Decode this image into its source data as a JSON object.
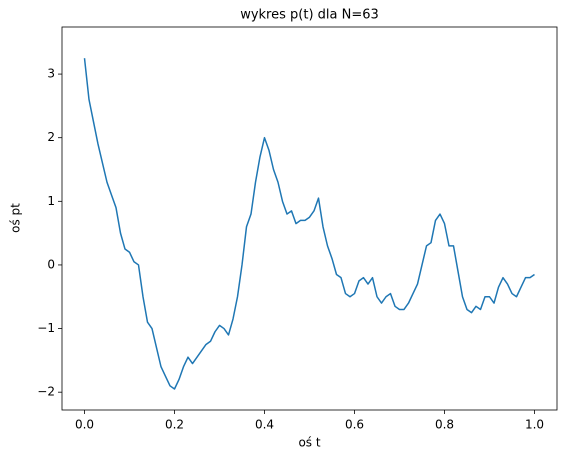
{
  "chart_data": {
    "type": "line",
    "title": "wykres p(t) dla N=63",
    "xlabel": "oś t",
    "ylabel": "oś pt",
    "color": "#1f77b4",
    "x": [
      0,
      0.01,
      0.02,
      0.03,
      0.04,
      0.05,
      0.06,
      0.07,
      0.08,
      0.09,
      0.1,
      0.11,
      0.12,
      0.13,
      0.14,
      0.15,
      0.16,
      0.17,
      0.18,
      0.19,
      0.2,
      0.21,
      0.22,
      0.23,
      0.24,
      0.25,
      0.26,
      0.27,
      0.28,
      0.29,
      0.3,
      0.31,
      0.32,
      0.33,
      0.34,
      0.35,
      0.36,
      0.37,
      0.38,
      0.39,
      0.4,
      0.41,
      0.42,
      0.43,
      0.44,
      0.45,
      0.46,
      0.47,
      0.48,
      0.49,
      0.5,
      0.51,
      0.52,
      0.53,
      0.54,
      0.55,
      0.56,
      0.57,
      0.58,
      0.59,
      0.6,
      0.61,
      0.62,
      0.63,
      0.64,
      0.65,
      0.66,
      0.67,
      0.68,
      0.69,
      0.7,
      0.71,
      0.72,
      0.73,
      0.74,
      0.75,
      0.76,
      0.77,
      0.78,
      0.79,
      0.8,
      0.81,
      0.82,
      0.83,
      0.84,
      0.85,
      0.86,
      0.87,
      0.88,
      0.89,
      0.9,
      0.91,
      0.92,
      0.93,
      0.94,
      0.95,
      0.96,
      0.97,
      0.98,
      0.99,
      1
    ],
    "values": [
      3.25,
      2.6,
      2.25,
      1.9,
      1.6,
      1.3,
      1.1,
      0.9,
      0.5,
      0.25,
      0.2,
      0.05,
      0,
      -0.5,
      -0.9,
      -1,
      -1.3,
      -1.6,
      -1.75,
      -1.9,
      -1.95,
      -1.8,
      -1.6,
      -1.45,
      -1.55,
      -1.45,
      -1.35,
      -1.25,
      -1.2,
      -1.05,
      -0.95,
      -1,
      -1.1,
      -0.85,
      -0.5,
      0,
      0.6,
      0.8,
      1.3,
      1.7,
      2,
      1.8,
      1.5,
      1.3,
      1,
      0.8,
      0.85,
      0.65,
      0.7,
      0.7,
      0.75,
      0.85,
      1.05,
      0.6,
      0.3,
      0.1,
      -0.15,
      -0.2,
      -0.45,
      -0.5,
      -0.45,
      -0.25,
      -0.2,
      -0.3,
      -0.2,
      -0.5,
      -0.6,
      -0.5,
      -0.45,
      -0.65,
      -0.7,
      -0.7,
      -0.6,
      -0.45,
      -0.3,
      0,
      0.3,
      0.35,
      0.7,
      0.8,
      0.65,
      0.3,
      0.3,
      -0.1,
      -0.5,
      -0.7,
      -0.75,
      -0.65,
      -0.7,
      -0.5,
      -0.5,
      -0.6,
      -0.35,
      -0.2,
      -0.3,
      -0.45,
      -0.5,
      -0.35,
      -0.2,
      -0.2,
      -0.15
    ],
    "xlim": [
      -0.05,
      1.05
    ],
    "xticks": [
      {
        "value": 0,
        "label": "0.0"
      },
      {
        "value": 0.2,
        "label": "0.2"
      },
      {
        "value": 0.4,
        "label": "0.4"
      },
      {
        "value": 0.6,
        "label": "0.6"
      },
      {
        "value": 0.8,
        "label": "0.8"
      },
      {
        "value": 1,
        "label": "1.0"
      }
    ],
    "ylim": [
      -2.28,
      3.74
    ],
    "yticks": [
      {
        "value": -2,
        "label": "−2"
      },
      {
        "value": -1,
        "label": "−1"
      },
      0,
      1,
      2,
      3
    ]
  }
}
